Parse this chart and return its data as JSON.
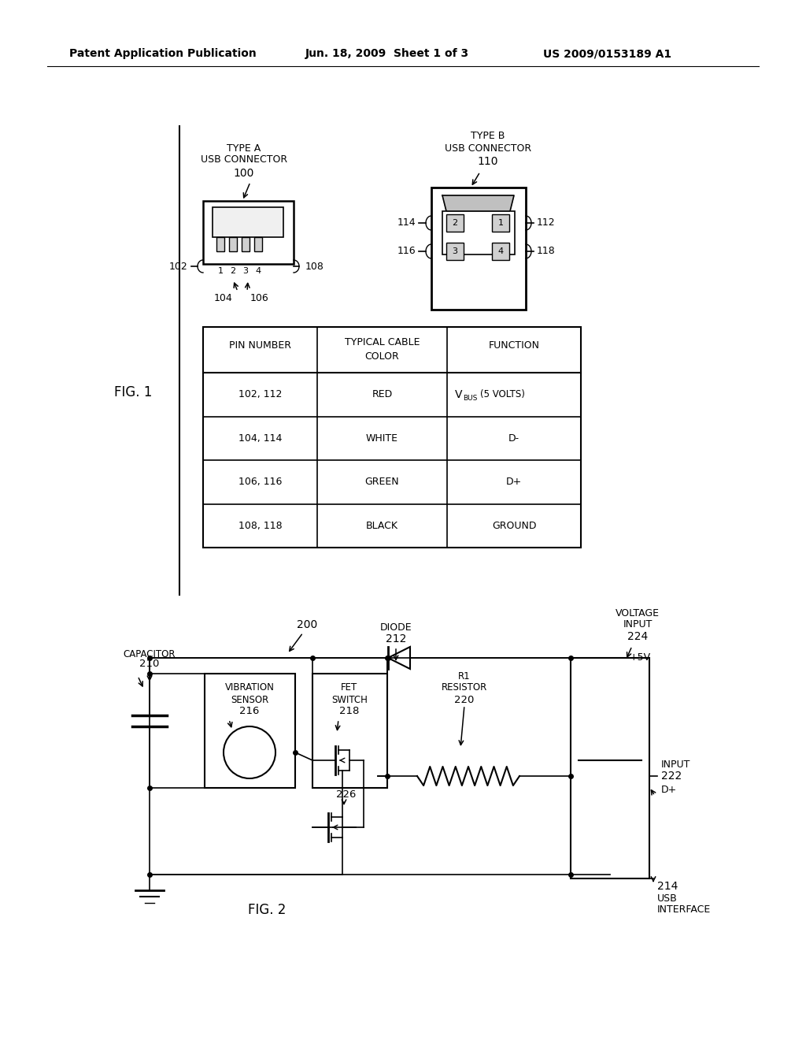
{
  "bg_color": "#ffffff",
  "header_left": "Patent Application Publication",
  "header_mid": "Jun. 18, 2009  Sheet 1 of 3",
  "header_right": "US 2009/0153189 A1"
}
